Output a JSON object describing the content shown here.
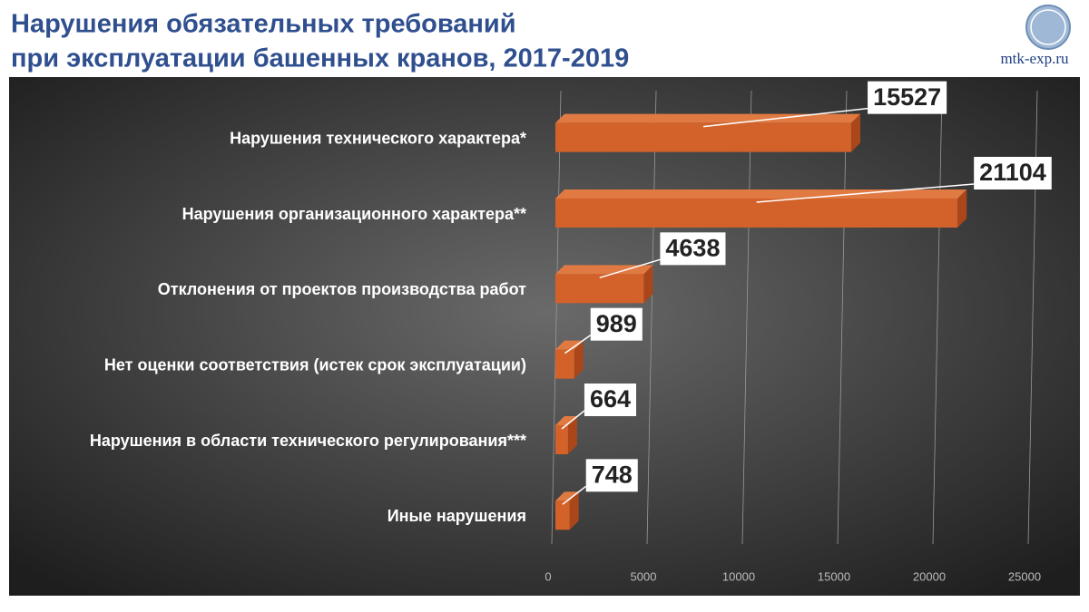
{
  "chart_data": {
    "type": "bar",
    "orientation": "horizontal",
    "title": [
      "Нарушения обязательных требований",
      "при эксплуатации башенных кранов, 2017-2019"
    ],
    "source": "mtk-exp.ru",
    "categories": [
      "Нарушения технического характера*",
      "Нарушения организационного характера**",
      "Отклонения от проектов производства работ",
      "Нет оценки соответствия (истек срок эксплуатации)",
      "Нарушения в области технического регулирования***",
      "Иные нарушения"
    ],
    "values": [
      15527,
      21104,
      4638,
      989,
      664,
      748
    ],
    "color": "#d2622a",
    "xlim": [
      0,
      25000
    ],
    "xticks": [
      0,
      5000,
      10000,
      15000,
      20000,
      25000
    ],
    "grid": true
  }
}
